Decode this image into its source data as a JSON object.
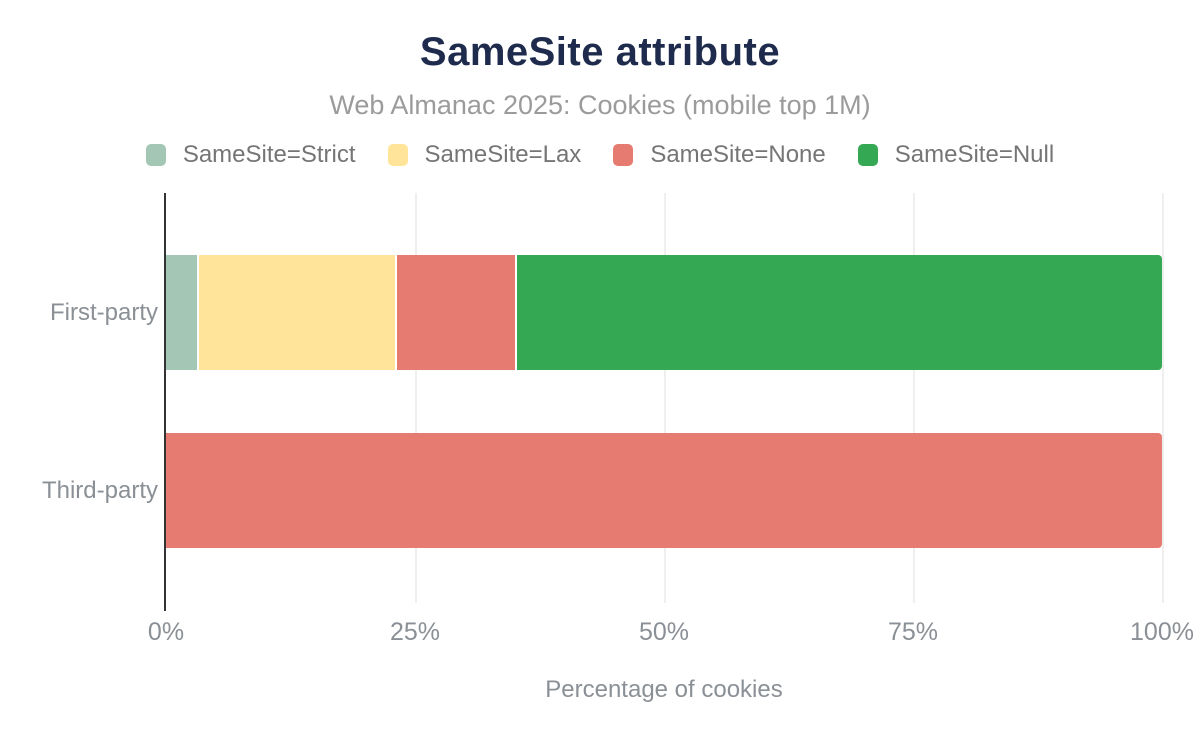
{
  "header": {
    "title": "SameSite attribute",
    "subtitle": "Web Almanac 2025: Cookies (mobile top 1M)"
  },
  "colors": {
    "title": "#1E2B4D",
    "subtitle_text": "#9B9B9B",
    "legend_text": "#757575",
    "axis_text": "#8A9096",
    "gridline": "#EFEFEF",
    "axis_line": "#333333",
    "background": "#FFFFFF"
  },
  "chart_data": {
    "type": "bar",
    "orientation": "horizontal",
    "stacked": true,
    "title": "SameSite attribute",
    "subtitle": "Web Almanac 2025: Cookies (mobile top 1M)",
    "xlabel": "Percentage of cookies",
    "ylabel": "",
    "xlim": [
      0,
      100
    ],
    "grid": true,
    "legend_position": "top",
    "categories": [
      "First-party",
      "Third-party"
    ],
    "series": [
      {
        "name": "SameSite=Strict",
        "color": "#A3C7B4",
        "values": [
          3.1,
          0
        ]
      },
      {
        "name": "SameSite=Lax",
        "color": "#FFE499",
        "values": [
          19.9,
          0
        ]
      },
      {
        "name": "SameSite=None",
        "color": "#E57B71",
        "values": [
          12.0,
          100
        ]
      },
      {
        "name": "SameSite=Null",
        "color": "#35A853",
        "values": [
          65.0,
          0
        ]
      }
    ],
    "xticks": [
      {
        "value": 0,
        "label": "0%"
      },
      {
        "value": 25,
        "label": "25%"
      },
      {
        "value": 50,
        "label": "50%"
      },
      {
        "value": 75,
        "label": "75%"
      },
      {
        "value": 100,
        "label": "100%"
      }
    ]
  }
}
